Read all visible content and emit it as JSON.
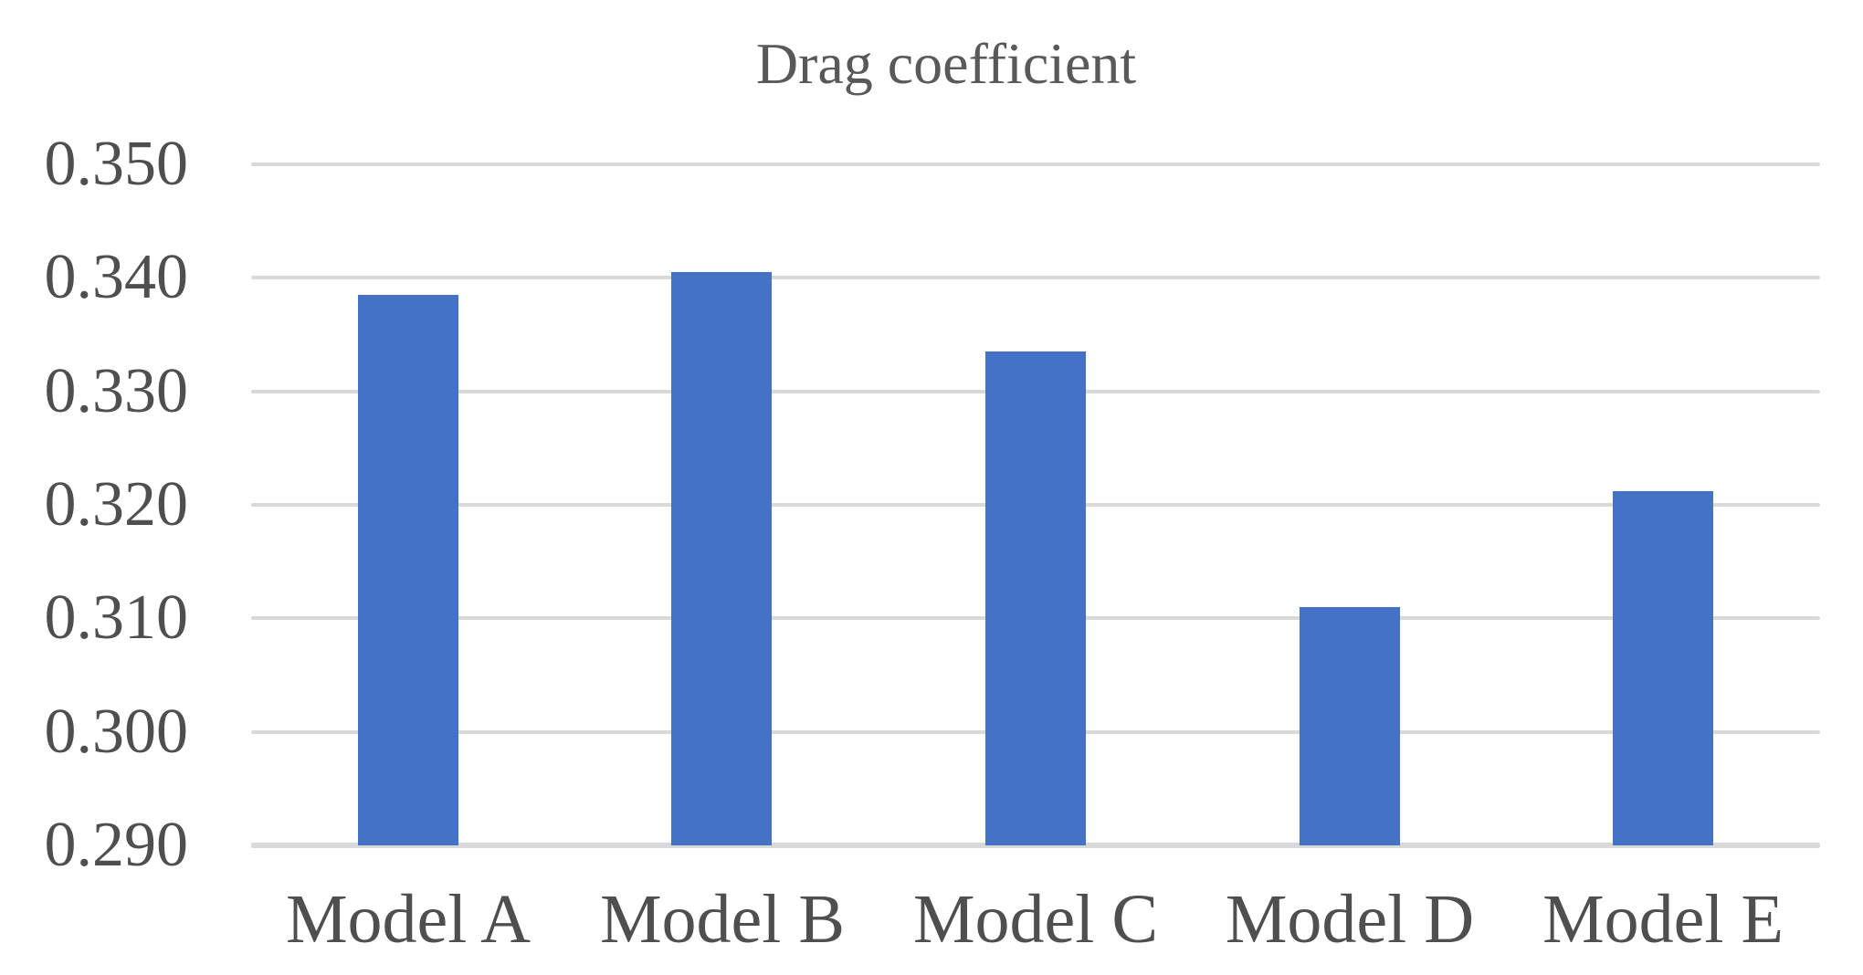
{
  "chart_data": {
    "type": "bar",
    "title": "Drag coefficient",
    "categories": [
      "Model A",
      "Model B",
      "Model C",
      "Model D",
      "Model E"
    ],
    "values": [
      0.3385,
      0.3405,
      0.3335,
      0.311,
      0.3212
    ],
    "xlabel": "",
    "ylabel": "",
    "ylim": [
      0.29,
      0.35
    ],
    "ytick_step": 0.01,
    "ytick_decimals": 3,
    "ytick_labels": [
      "0.350",
      "0.340",
      "0.330",
      "0.320",
      "0.310",
      "0.300",
      "0.290"
    ],
    "grid": true,
    "legend": false,
    "colors": {
      "bar": "#4472C4",
      "gridline": "#D9D9D9",
      "title_text": "#595959",
      "axis_text": "#4F4F4F",
      "background": "#FFFFFF"
    }
  }
}
